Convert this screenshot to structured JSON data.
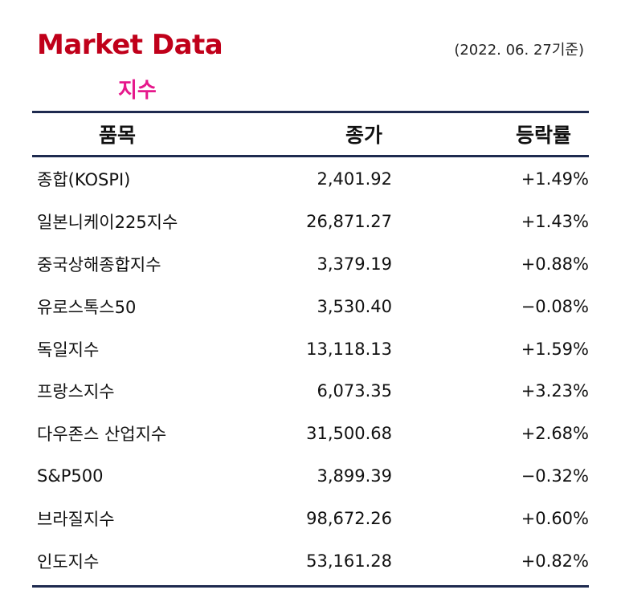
{
  "header": {
    "title": "Market Data",
    "date": "(2022. 06. 27기준)",
    "subtitle": "지수"
  },
  "colors": {
    "title": "#c0001a",
    "subtitle": "#e6198c",
    "rule": "#1e2a4f",
    "up": "#e0101b",
    "down": "#1a28c8"
  },
  "table": {
    "columns": [
      "품목",
      "종가",
      "등락률"
    ],
    "rows": [
      {
        "name": "종합(KOSPI)",
        "price": "2,401.92",
        "change": "+1.49%",
        "direction": "up"
      },
      {
        "name": "일본니케이225지수",
        "price": "26,871.27",
        "change": "+1.43%",
        "direction": "up"
      },
      {
        "name": "중국상해종합지수",
        "price": "3,379.19",
        "change": "+0.88%",
        "direction": "up"
      },
      {
        "name": "유로스톡스50",
        "price": "3,530.40",
        "change": "−0.08%",
        "direction": "down"
      },
      {
        "name": "독일지수",
        "price": "13,118.13",
        "change": "+1.59%",
        "direction": "up"
      },
      {
        "name": "프랑스지수",
        "price": "6,073.35",
        "change": "+3.23%",
        "direction": "up"
      },
      {
        "name": "다우존스 산업지수",
        "price": "31,500.68",
        "change": "+2.68%",
        "direction": "up"
      },
      {
        "name": "S&P500",
        "price": "3,899.39",
        "change": "−0.32%",
        "direction": "down"
      },
      {
        "name": "브라질지수",
        "price": "98,672.26",
        "change": "+0.60%",
        "direction": "up"
      },
      {
        "name": "인도지수",
        "price": "53,161.28",
        "change": "+0.82%",
        "direction": "up"
      }
    ]
  }
}
